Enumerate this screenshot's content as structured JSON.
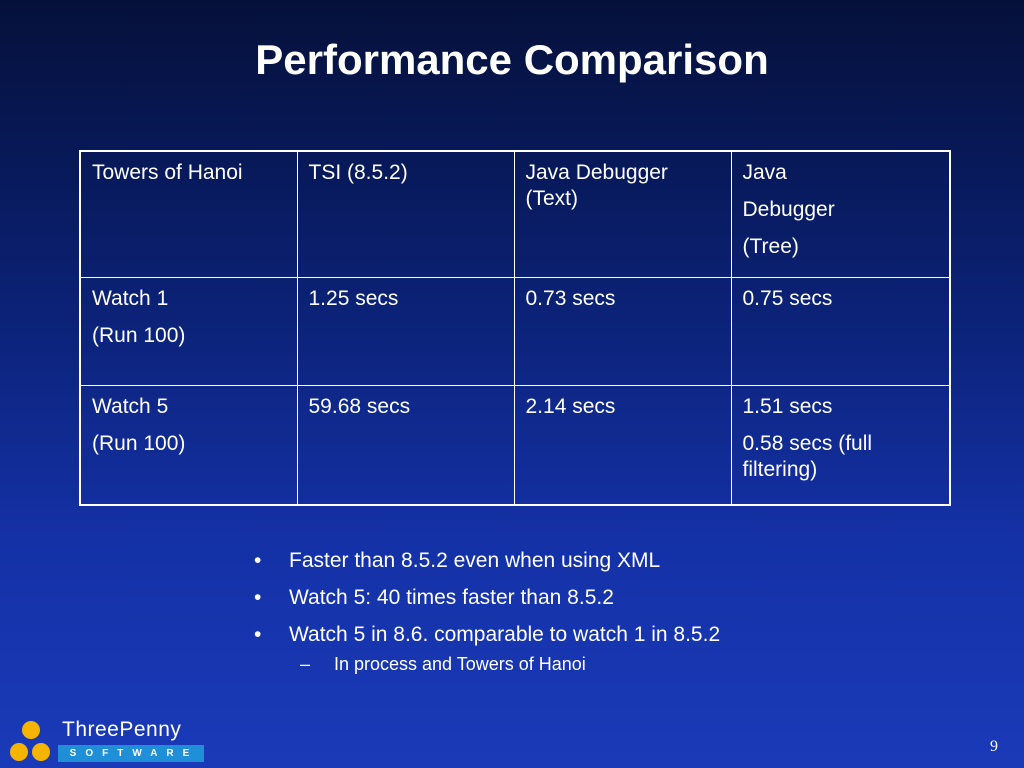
{
  "title": "Performance Comparison",
  "table": {
    "rows": [
      [
        {
          "lines": [
            "Towers of Hanoi"
          ]
        },
        {
          "lines": [
            "TSI (8.5.2)"
          ]
        },
        {
          "lines": [
            "Java Debugger",
            "(Text)"
          ]
        },
        {
          "lines": [
            "Java",
            "Debugger",
            "(Tree)"
          ]
        }
      ],
      [
        {
          "lines": [
            "Watch 1",
            "(Run 100)"
          ]
        },
        {
          "lines": [
            "1.25 secs"
          ]
        },
        {
          "lines": [
            "0.73 secs"
          ]
        },
        {
          "lines": [
            "0.75 secs"
          ]
        }
      ],
      [
        {
          "lines": [
            "Watch 5",
            "(Run 100)"
          ]
        },
        {
          "lines": [
            "59.68 secs"
          ]
        },
        {
          "lines": [
            "2.14 secs"
          ]
        },
        {
          "lines": [
            "1.51 secs",
            "0.58 secs (full filtering)"
          ]
        }
      ]
    ]
  },
  "bullets": [
    {
      "marker": "•",
      "text": "Faster than 8.5.2 even when using XML"
    },
    {
      "marker": "•",
      "text": "Watch 5: 40 times faster than 8.5.2"
    },
    {
      "marker": "•",
      "text": "Watch 5 in 8.6. comparable to watch 1 in 8.5.2"
    }
  ],
  "sub_bullet": {
    "marker": "–",
    "text": "In process and Towers of Hanoi"
  },
  "logo": {
    "name": "ThreePenny",
    "tagline": "SOFTWARE",
    "dot_color": "#f5b400",
    "band_color": "#1f8fd8"
  },
  "page_number": "9"
}
